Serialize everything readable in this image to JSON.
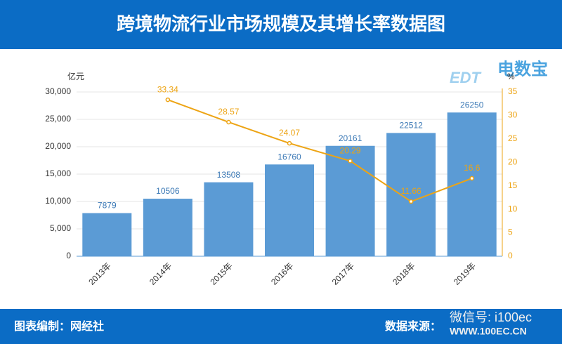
{
  "header": {
    "title": "跨境物流行业市场规模及其增长率数据图"
  },
  "footer": {
    "left": "图表编制：网经社",
    "right": "数据来源："
  },
  "watermark": {
    "logo": "电数宝",
    "logo_sub": "EDT",
    "wechat": "微信号: i100ec",
    "site": "WWW.100EC.CN"
  },
  "chart_data": {
    "type": "bar",
    "y_label": "亿元",
    "y2_label": "%",
    "categories": [
      "2013年",
      "2014年",
      "2015年",
      "2016年",
      "2017年",
      "2018年",
      "2019年"
    ],
    "series": [
      {
        "type": "bar",
        "color": "#5b9bd5",
        "values": [
          7879,
          10506,
          13508,
          16760,
          20161,
          22512,
          26250
        ]
      },
      {
        "type": "line",
        "axis": "y2",
        "color": "#eda414",
        "values": [
          null,
          33.34,
          28.57,
          24.07,
          20.29,
          11.66,
          16.6
        ]
      }
    ],
    "ylim": [
      0,
      30000
    ],
    "yticks": [
      0,
      {
        "value": 5000,
        "label": "5,000"
      },
      {
        "value": 10000,
        "label": "10,000"
      },
      {
        "value": 15000,
        "label": "15,000"
      },
      {
        "value": 20000,
        "label": "20,000"
      },
      {
        "value": 25000,
        "label": "25,000"
      },
      {
        "value": 30000,
        "label": "30,000"
      }
    ],
    "y2lim": [
      0,
      35
    ],
    "y2ticks": [
      0,
      5,
      10,
      15,
      20,
      25,
      30,
      35
    ],
    "grid": true
  }
}
